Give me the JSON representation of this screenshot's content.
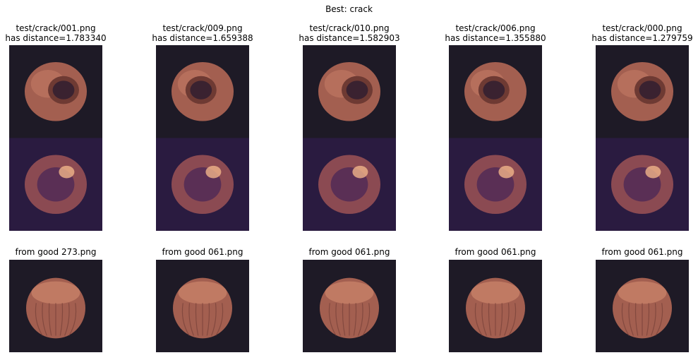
{
  "figure": {
    "title": "Best: crack"
  },
  "columns": [
    {
      "top_title": "test/crack/001.png\nhas distance=1.783340",
      "bottom_title": "from good 273.png"
    },
    {
      "top_title": "test/crack/009.png\nhas distance=1.659388",
      "bottom_title": "from good 061.png"
    },
    {
      "top_title": "test/crack/010.png\nhas distance=1.582903",
      "bottom_title": "from good 061.png"
    },
    {
      "top_title": "test/crack/006.png\nhas distance=1.355880",
      "bottom_title": "from good 061.png"
    },
    {
      "top_title": "test/crack/000.png\nhas distance=1.279759",
      "bottom_title": "from good 061.png"
    }
  ],
  "colors": {
    "image_background": "#1e1a26",
    "heatmap_background": "#2a1b40",
    "shell": "#a35f50",
    "shell_highlight": "#d99072",
    "shell_dark": "#6e3a33"
  }
}
